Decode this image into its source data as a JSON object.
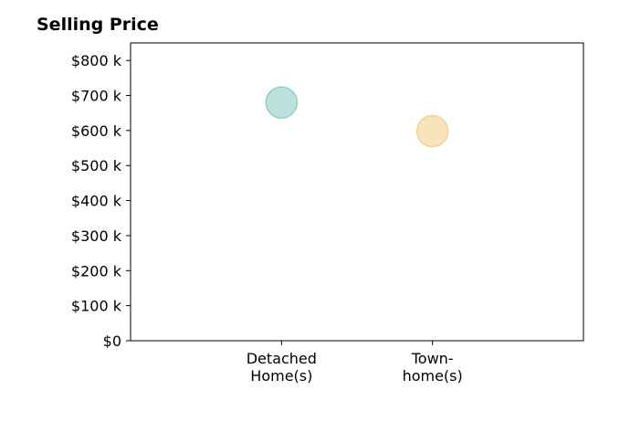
{
  "chart_data": {
    "type": "scatter",
    "title": "Selling Price",
    "categories": [
      "Detached\nHome(s)",
      "Town-\nhome(s)"
    ],
    "values": [
      680,
      598
    ],
    "ylim": [
      0,
      850
    ],
    "y_ticks": [
      0,
      100,
      200,
      300,
      400,
      500,
      600,
      700,
      800
    ],
    "y_tick_labels": [
      "$0",
      "$100 k",
      "$200 k",
      "$300 k",
      "$400 k",
      "$500 k",
      "$600 k",
      "$700 k",
      "$800 k"
    ],
    "point_colors": [
      "#8fcfc7",
      "#f3d28f"
    ],
    "grid": false,
    "legend": "none"
  }
}
